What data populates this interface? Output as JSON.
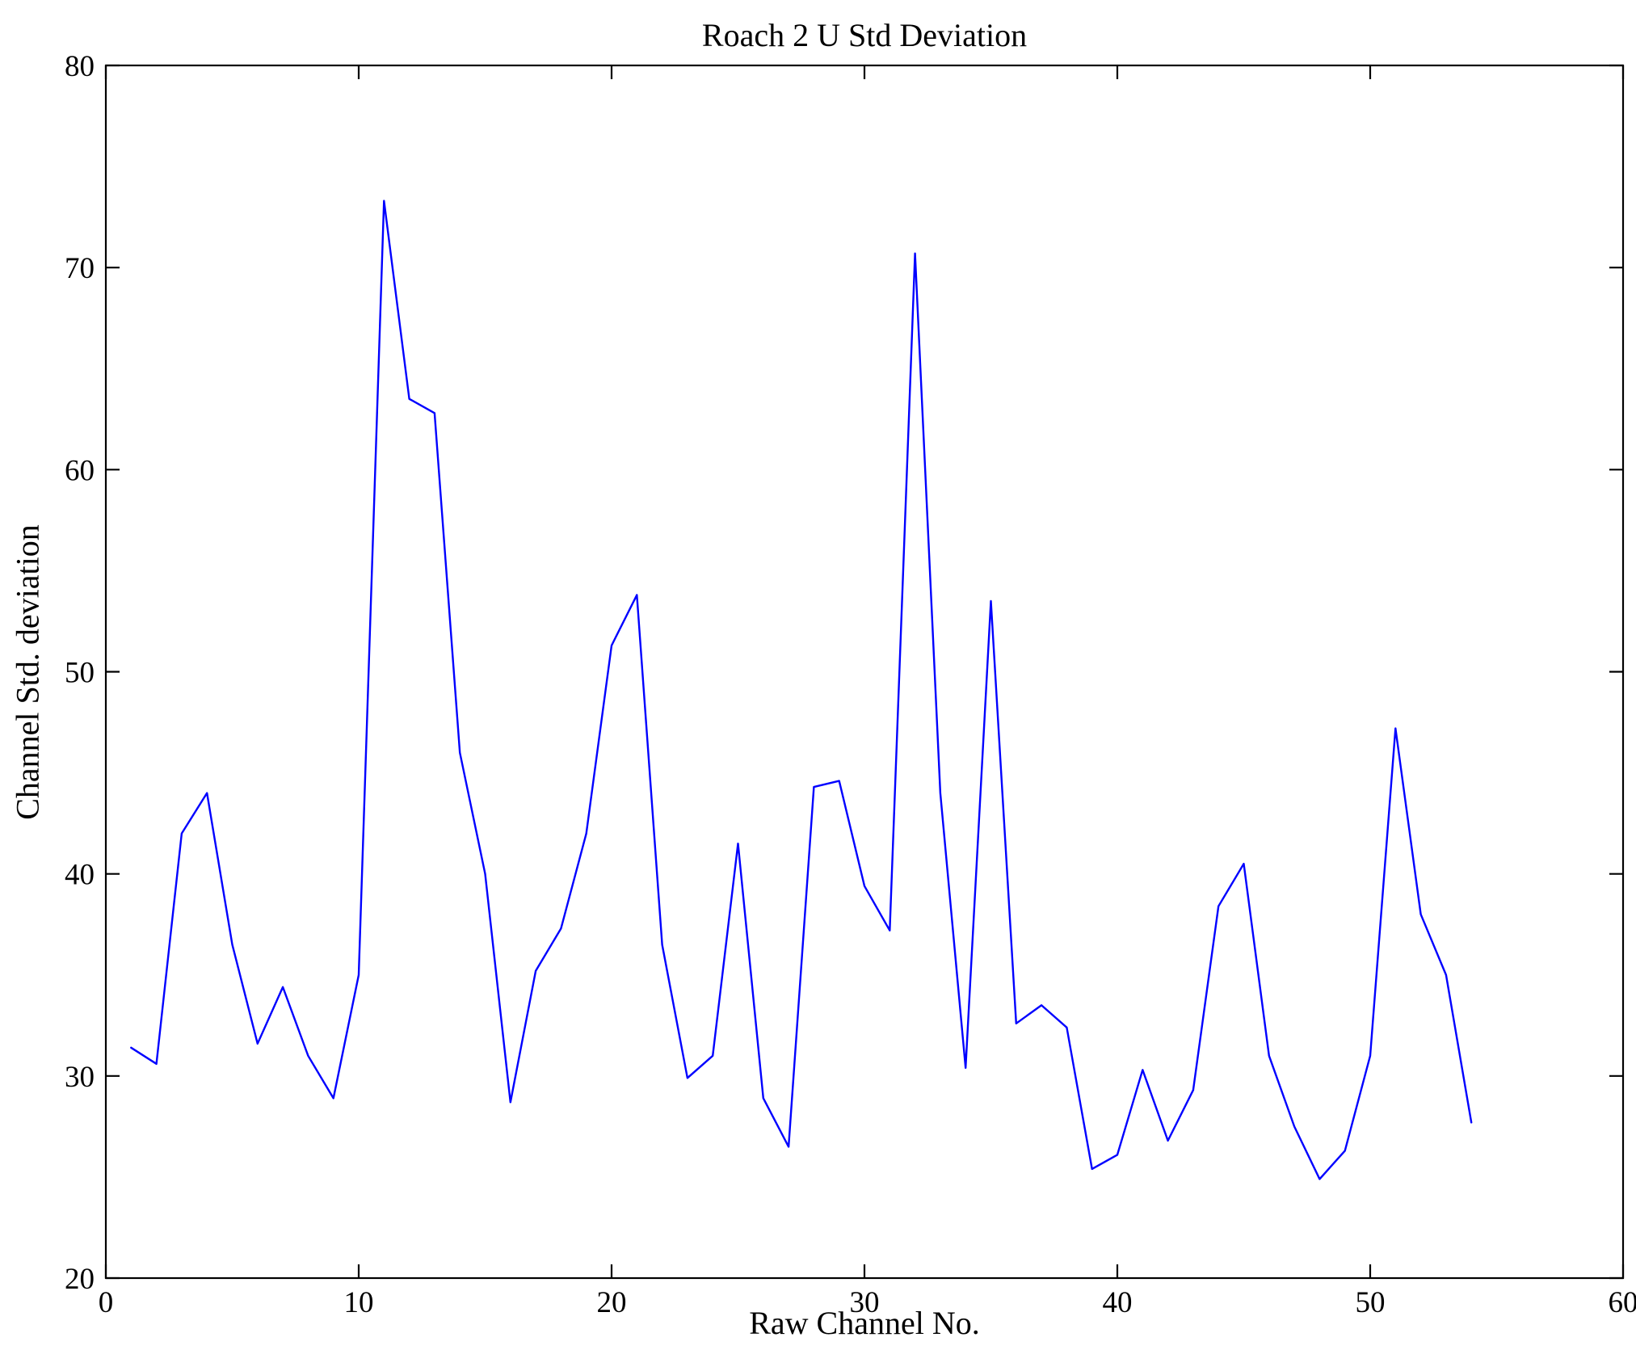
{
  "chart_data": {
    "type": "line",
    "title": "Roach 2 U Std Deviation",
    "xlabel": "Raw Channel No.",
    "ylabel": "Channel Std. deviation",
    "xlim": [
      0,
      60
    ],
    "ylim": [
      20,
      80
    ],
    "xticks": [
      0,
      10,
      20,
      30,
      40,
      50,
      60
    ],
    "yticks": [
      20,
      30,
      40,
      50,
      60,
      70,
      80
    ],
    "grid": false,
    "legend": null,
    "line_color": "#0000ff",
    "axis_color": "#000000",
    "background_color": "#ffffff",
    "x": [
      1,
      2,
      3,
      4,
      5,
      6,
      7,
      8,
      9,
      10,
      11,
      12,
      13,
      14,
      15,
      16,
      17,
      18,
      19,
      20,
      21,
      22,
      23,
      24,
      25,
      26,
      27,
      28,
      29,
      30,
      31,
      32,
      33,
      34,
      35,
      36,
      37,
      38,
      39,
      40,
      41,
      42,
      43,
      44,
      45,
      46,
      47,
      48,
      49,
      50,
      51,
      52,
      53,
      54
    ],
    "values": [
      31.4,
      30.6,
      42.0,
      44.0,
      36.5,
      31.6,
      34.4,
      31.0,
      28.9,
      35.0,
      73.3,
      63.5,
      62.8,
      46.0,
      40.0,
      28.7,
      35.2,
      37.3,
      42.0,
      51.3,
      53.8,
      36.5,
      29.9,
      31.0,
      41.5,
      28.9,
      26.5,
      44.3,
      44.6,
      39.4,
      37.2,
      70.7,
      44.0,
      30.4,
      53.5,
      32.6,
      33.5,
      32.4,
      25.4,
      26.1,
      30.3,
      26.8,
      29.3,
      38.4,
      40.5,
      31.0,
      27.5,
      24.9,
      26.3,
      31.0,
      47.2,
      38.0,
      35.0,
      27.7
    ]
  }
}
